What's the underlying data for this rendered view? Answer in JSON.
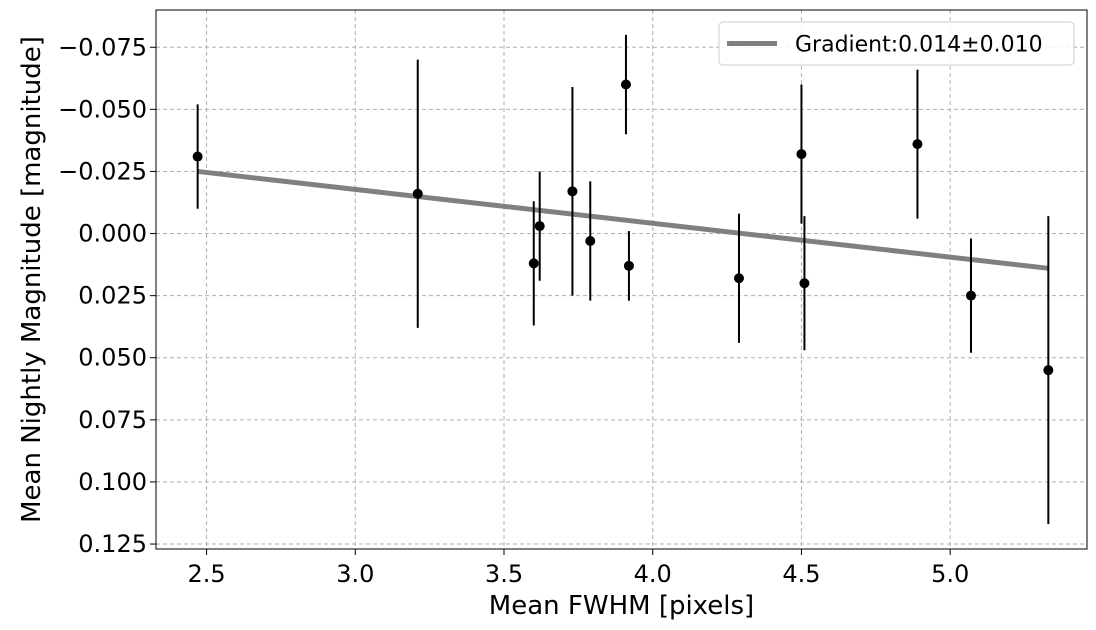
{
  "chart_data": {
    "type": "scatter",
    "title": "",
    "xlabel": "Mean FWHM [pixels]",
    "ylabel": "Mean Nightly Magnitude [magnitude]",
    "xlim": [
      2.33,
      5.46
    ],
    "ylim": [
      0.127,
      -0.09
    ],
    "y_inverted": true,
    "grid": true,
    "legend_position": "top-right",
    "x_ticks": [
      {
        "value": 2.5,
        "label": "2.5"
      },
      {
        "value": 3.0,
        "label": "3.0"
      },
      {
        "value": 3.5,
        "label": "3.5"
      },
      {
        "value": 4.0,
        "label": "4.0"
      },
      {
        "value": 4.5,
        "label": "4.5"
      },
      {
        "value": 5.0,
        "label": "5.0"
      }
    ],
    "y_ticks": [
      {
        "value": -0.075,
        "label": "−0.075"
      },
      {
        "value": -0.05,
        "label": "−0.050"
      },
      {
        "value": -0.025,
        "label": "−0.025"
      },
      {
        "value": 0.0,
        "label": "0.000"
      },
      {
        "value": 0.025,
        "label": "0.025"
      },
      {
        "value": 0.05,
        "label": "0.050"
      },
      {
        "value": 0.075,
        "label": "0.075"
      },
      {
        "value": 0.1,
        "label": "0.100"
      },
      {
        "value": 0.125,
        "label": "0.125"
      }
    ],
    "points": [
      {
        "x": 2.47,
        "y": -0.031,
        "err": 0.021
      },
      {
        "x": 3.21,
        "y": -0.016,
        "err": 0.054
      },
      {
        "x": 3.6,
        "y": 0.012,
        "err": 0.025
      },
      {
        "x": 3.62,
        "y": -0.003,
        "err": 0.022
      },
      {
        "x": 3.73,
        "y": -0.017,
        "err": 0.042
      },
      {
        "x": 3.79,
        "y": 0.003,
        "err": 0.024
      },
      {
        "x": 3.91,
        "y": -0.06,
        "err": 0.02
      },
      {
        "x": 3.92,
        "y": 0.013,
        "err": 0.014
      },
      {
        "x": 4.29,
        "y": 0.018,
        "err": 0.026
      },
      {
        "x": 4.5,
        "y": -0.032,
        "err": 0.028
      },
      {
        "x": 4.51,
        "y": 0.02,
        "err": 0.027
      },
      {
        "x": 4.89,
        "y": -0.036,
        "err": 0.03
      },
      {
        "x": 5.07,
        "y": 0.025,
        "err": 0.023
      },
      {
        "x": 5.33,
        "y": 0.055,
        "err": 0.062
      }
    ],
    "fit_line": {
      "x": [
        2.47,
        5.33
      ],
      "y": [
        -0.025,
        0.014
      ],
      "label": "Gradient:0.014±0.010",
      "color": "#808080"
    },
    "point_color": "#000000"
  }
}
